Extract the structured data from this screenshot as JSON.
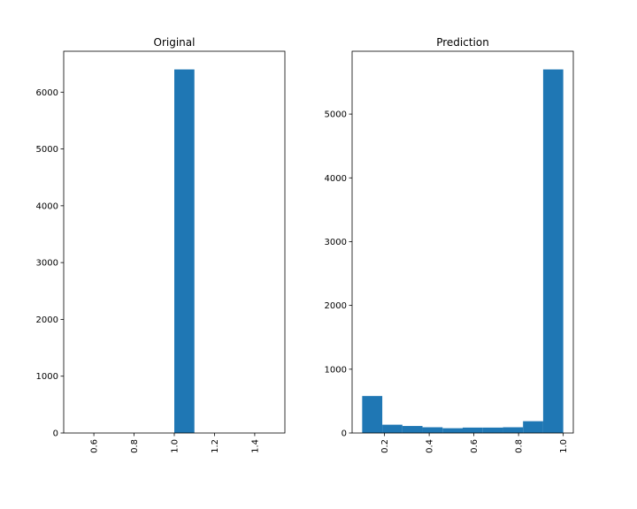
{
  "chart_data": [
    {
      "type": "bar",
      "title": "Original",
      "xlim": [
        0.45,
        1.55
      ],
      "ylim": [
        0,
        6720
      ],
      "xticks": [
        0.6,
        0.8,
        1.0,
        1.2,
        1.4
      ],
      "xtick_labels": [
        "0.6",
        "0.8",
        "1.0",
        "1.2",
        "1.4"
      ],
      "yticks": [
        0,
        1000,
        2000,
        3000,
        4000,
        5000,
        6000
      ],
      "ytick_labels": [
        "0",
        "1000",
        "2000",
        "3000",
        "4000",
        "5000",
        "6000"
      ],
      "bins": [
        {
          "x0": 1.0,
          "x1": 1.1,
          "value": 6400
        }
      ],
      "bar_color": "#1f77b4",
      "grid": false
    },
    {
      "type": "bar",
      "title": "Prediction",
      "xlim": [
        0.055,
        1.045
      ],
      "ylim": [
        0,
        5985
      ],
      "xticks": [
        0.2,
        0.4,
        0.6,
        0.8,
        1.0
      ],
      "xtick_labels": [
        "0.2",
        "0.4",
        "0.6",
        "0.8",
        "1.0"
      ],
      "yticks": [
        0,
        1000,
        2000,
        3000,
        4000,
        5000
      ],
      "ytick_labels": [
        "0",
        "1000",
        "2000",
        "3000",
        "4000",
        "5000"
      ],
      "bins": [
        {
          "x0": 0.1,
          "x1": 0.19,
          "value": 580
        },
        {
          "x0": 0.19,
          "x1": 0.28,
          "value": 130
        },
        {
          "x0": 0.28,
          "x1": 0.37,
          "value": 110
        },
        {
          "x0": 0.37,
          "x1": 0.46,
          "value": 90
        },
        {
          "x0": 0.46,
          "x1": 0.55,
          "value": 75
        },
        {
          "x0": 0.55,
          "x1": 0.64,
          "value": 85
        },
        {
          "x0": 0.64,
          "x1": 0.73,
          "value": 85
        },
        {
          "x0": 0.73,
          "x1": 0.82,
          "value": 90
        },
        {
          "x0": 0.82,
          "x1": 0.91,
          "value": 185
        },
        {
          "x0": 0.91,
          "x1": 1.0,
          "value": 5700
        }
      ],
      "bar_color": "#1f77b4",
      "grid": false
    }
  ]
}
